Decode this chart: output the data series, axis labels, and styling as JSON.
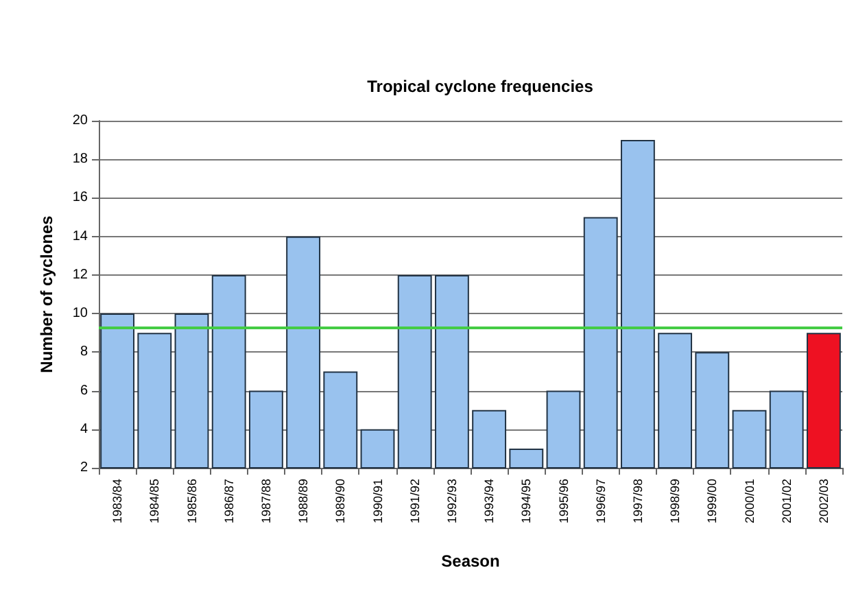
{
  "chart_data": {
    "type": "bar",
    "title": "Tropical cyclone frequencies",
    "xlabel": "Season",
    "ylabel": "Number of cyclones",
    "categories": [
      "1983/84",
      "1984/85",
      "1985/86",
      "1986/87",
      "1987/88",
      "1988/89",
      "1989/90",
      "1990/91",
      "1991/92",
      "1992/93",
      "1993/94",
      "1994/95",
      "1995/96",
      "1996/97",
      "1997/98",
      "1998/99",
      "1999/00",
      "2000/01",
      "2001/02",
      "2002/03"
    ],
    "values": [
      10,
      9,
      10,
      12,
      6,
      14,
      7,
      4,
      12,
      12,
      5,
      3,
      6,
      15,
      19,
      9,
      8,
      5,
      6,
      9
    ],
    "colors": [
      "#99c2ee",
      "#99c2ee",
      "#99c2ee",
      "#99c2ee",
      "#99c2ee",
      "#99c2ee",
      "#99c2ee",
      "#99c2ee",
      "#99c2ee",
      "#99c2ee",
      "#99c2ee",
      "#99c2ee",
      "#99c2ee",
      "#99c2ee",
      "#99c2ee",
      "#99c2ee",
      "#99c2ee",
      "#99c2ee",
      "#99c2ee",
      "#ee1122"
    ],
    "ylim": [
      2,
      20
    ],
    "yticks": [
      2,
      4,
      6,
      8,
      10,
      12,
      14,
      16,
      18,
      20
    ],
    "grid": "y",
    "ref_lines": [
      {
        "axis": "y",
        "value": 9.3,
        "color": "#44cc44"
      }
    ]
  }
}
